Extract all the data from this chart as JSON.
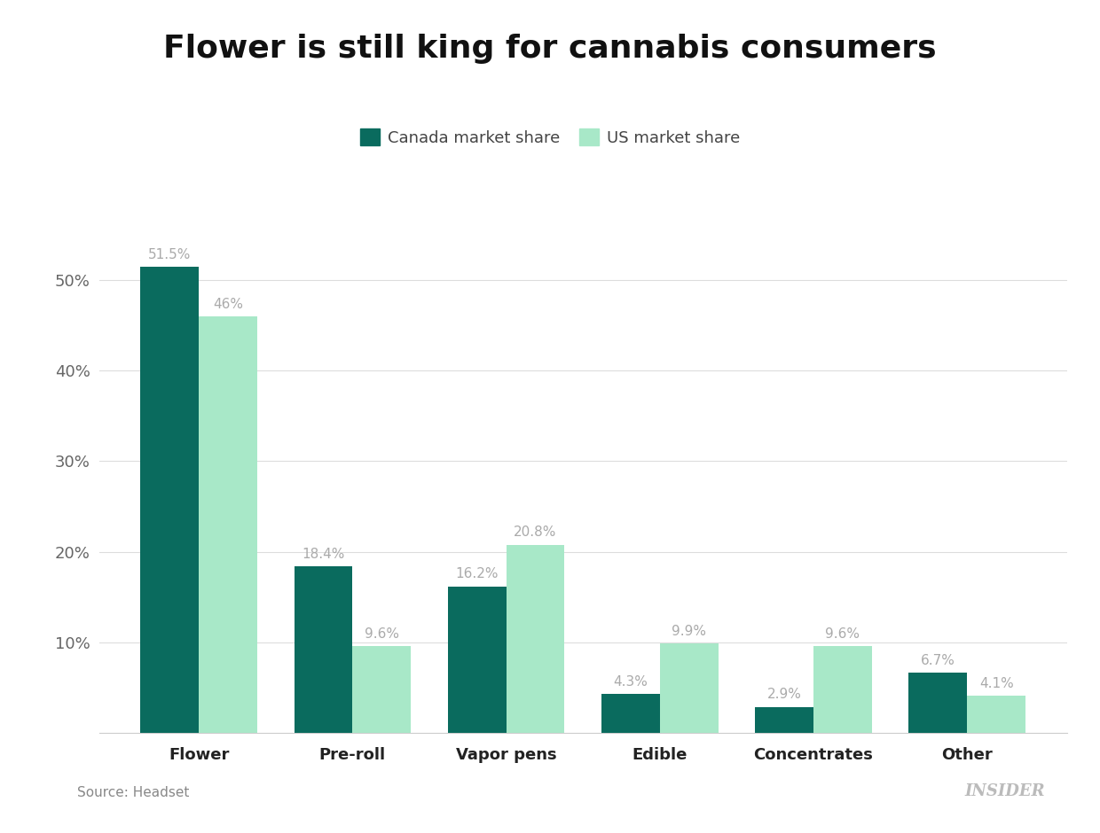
{
  "title": "Flower is still king for cannabis consumers",
  "categories": [
    "Flower",
    "Pre-roll",
    "Vapor pens",
    "Edible",
    "Concentrates",
    "Other"
  ],
  "canada_values": [
    51.5,
    18.4,
    16.2,
    4.3,
    2.9,
    6.7
  ],
  "us_values": [
    46.0,
    9.6,
    20.8,
    9.9,
    9.6,
    4.1
  ],
  "canada_labels": [
    "51.5%",
    "18.4%",
    "16.2%",
    "4.3%",
    "2.9%",
    "6.7%"
  ],
  "us_labels": [
    "46%",
    "9.6%",
    "20.8%",
    "9.9%",
    "9.6%",
    "4.1%"
  ],
  "canada_color": "#0a6b5e",
  "us_color": "#a8e8c8",
  "legend_canada": "Canada market share",
  "legend_us": "US market share",
  "yticks": [
    10,
    20,
    30,
    40,
    50
  ],
  "ylim": [
    0,
    57
  ],
  "source_text": "Source: Headset",
  "insider_text": "INSIDER",
  "background_color": "#ffffff",
  "bar_width": 0.38,
  "label_color": "#aaaaaa",
  "grid_color": "#dddddd",
  "title_fontsize": 26,
  "label_fontsize": 11,
  "tick_fontsize": 13,
  "legend_fontsize": 13,
  "source_fontsize": 11,
  "insider_fontsize": 13
}
